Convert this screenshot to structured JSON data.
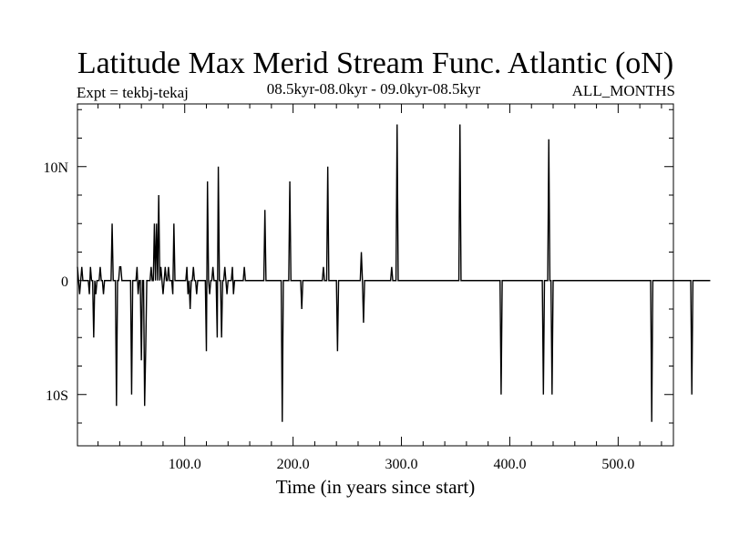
{
  "chart_data": {
    "type": "line",
    "title": "Latitude Max Merid Stream Func. Atlantic (oN)",
    "subtitle_left": "Expt = tekbj-tekaj",
    "subtitle_center": "08.5kyr-08.0kyr - 09.0kyr-08.5kyr",
    "subtitle_right": "ALL_MONTHS",
    "xlabel": "Time (in years since start)",
    "ylabel": "",
    "xlim": [
      1,
      551
    ],
    "ylim": [
      -14.5,
      15.5
    ],
    "x_ticks": [
      {
        "value": 100,
        "label": "100.0"
      },
      {
        "value": 200,
        "label": "200.0"
      },
      {
        "value": 300,
        "label": "300.0"
      },
      {
        "value": 400,
        "label": "400.0"
      },
      {
        "value": 500,
        "label": "500.0"
      }
    ],
    "y_ticks": [
      {
        "value": 10,
        "label": "10N"
      },
      {
        "value": 0,
        "label": "0"
      },
      {
        "value": -10,
        "label": "10S"
      }
    ],
    "series": [
      {
        "name": "Latitude Max Merid Stream Func. Atlantic",
        "x_start": 1,
        "x_step": 1,
        "values": [
          1.2,
          0,
          -1.2,
          0,
          1.2,
          0,
          0,
          0,
          0,
          0,
          0,
          -1.2,
          1.2,
          0,
          0,
          -5,
          0,
          -1.2,
          0,
          0,
          0,
          1.2,
          0,
          0,
          -1.2,
          0,
          0,
          0,
          0,
          0,
          0,
          0,
          5,
          0,
          0,
          0,
          -11,
          0,
          0,
          1.2,
          1.2,
          0,
          0,
          0,
          0,
          0,
          0,
          0,
          0,
          0,
          -10,
          0,
          0,
          0,
          0,
          1.2,
          -1.2,
          0,
          0,
          -7,
          0,
          0,
          -11,
          -6,
          0,
          0,
          0,
          0,
          1.2,
          0,
          0,
          5,
          0,
          5,
          0,
          7.5,
          0,
          1.2,
          0,
          -1.2,
          0,
          1.2,
          0,
          0,
          1.2,
          0,
          0,
          0,
          -1.2,
          5,
          0,
          0,
          0,
          0,
          0,
          0,
          0,
          0,
          0,
          0,
          0,
          1.2,
          -1.2,
          0,
          -2.5,
          0,
          0,
          1.2,
          0,
          0,
          -1.2,
          0,
          0,
          0,
          0,
          0,
          0,
          0,
          0,
          -6.2,
          8.7,
          0,
          -1.2,
          0,
          0,
          1.2,
          0,
          0,
          0,
          -5,
          10,
          0,
          0,
          -5,
          0,
          0,
          1.2,
          0,
          -1.2,
          0,
          0,
          0,
          0,
          1.2,
          -1.2,
          0,
          0,
          0,
          0,
          0,
          0,
          0,
          0,
          0,
          1.2,
          0,
          0,
          0,
          0,
          0,
          0,
          0,
          0,
          0,
          0,
          0,
          0,
          0,
          0,
          0,
          0,
          0,
          0,
          6.2,
          0,
          0,
          0,
          0,
          0,
          0,
          0,
          0,
          0,
          0,
          0,
          0,
          0,
          0,
          0,
          -12.4,
          0,
          0,
          0,
          0,
          0,
          0,
          8.7,
          0,
          0,
          0,
          0,
          0,
          0,
          0,
          0,
          0,
          0,
          -2.5,
          0,
          0,
          0,
          0,
          0,
          0,
          0,
          0,
          0,
          0,
          0,
          0,
          0,
          0,
          0,
          0,
          0,
          0,
          0,
          1.2,
          0,
          0,
          0,
          10,
          0,
          0,
          0,
          0,
          0,
          0,
          0,
          0,
          -6.2,
          0,
          0,
          0,
          0,
          0,
          0,
          0,
          0,
          0,
          0,
          0,
          0,
          0,
          0,
          0,
          0,
          0,
          0,
          0,
          0,
          0,
          2.5,
          0,
          -3.7,
          0,
          0,
          0,
          0,
          0,
          0,
          0,
          0,
          0,
          0,
          0,
          0,
          0,
          0,
          0,
          0,
          0,
          0,
          0,
          0,
          0,
          0,
          0,
          0,
          0,
          1.2,
          0,
          0,
          0,
          0,
          13.7,
          0,
          0,
          0,
          0,
          0,
          0,
          0,
          0,
          0,
          0,
          0,
          0,
          0,
          0,
          0,
          0,
          0,
          0,
          0,
          0,
          0,
          0,
          0,
          0,
          0,
          0,
          0,
          0,
          0,
          0,
          0,
          0,
          0,
          0,
          0,
          0,
          0,
          0,
          0,
          0,
          0,
          0,
          0,
          0,
          0,
          0,
          0,
          0,
          0,
          0,
          0,
          0,
          0,
          0,
          0,
          0,
          0,
          13.7,
          0,
          0,
          0,
          0,
          0,
          0,
          0,
          0,
          0,
          0,
          0,
          0,
          0,
          0,
          0,
          0,
          0,
          0,
          0,
          0,
          0,
          0,
          0,
          0,
          0,
          0,
          0,
          0,
          0,
          0,
          0,
          0,
          0,
          0,
          0,
          0,
          0,
          -10,
          0,
          0,
          0,
          0,
          0,
          0,
          0,
          0,
          0,
          0,
          0,
          0,
          0,
          0,
          0,
          0,
          0,
          0,
          0,
          0,
          0,
          0,
          0,
          0,
          0,
          0,
          0,
          0,
          0,
          0,
          0,
          0,
          0,
          0,
          0,
          0,
          0,
          0,
          -10,
          0,
          0,
          0,
          0,
          12.4,
          0,
          0,
          -10,
          0,
          0,
          0,
          0,
          0,
          0,
          0,
          0,
          0,
          0,
          0,
          0,
          0,
          0,
          0,
          0,
          0,
          0,
          0,
          0,
          0,
          0,
          0,
          0,
          0,
          0,
          0,
          0,
          0,
          0,
          0,
          0,
          0,
          0,
          0,
          0,
          0,
          0,
          0,
          0,
          0,
          0,
          0,
          0,
          0,
          0,
          0,
          0,
          0,
          0,
          0,
          0,
          0,
          0,
          0,
          0,
          0,
          0,
          0,
          0,
          0,
          0,
          0,
          0,
          0,
          0,
          0,
          0,
          0,
          0,
          0,
          0,
          0,
          0,
          0,
          0,
          0,
          0,
          0,
          0,
          0,
          0,
          0,
          0,
          0,
          0,
          0,
          0,
          0,
          0,
          0,
          -12.4,
          0,
          0,
          0,
          0,
          0,
          0,
          0,
          0,
          0,
          0,
          0,
          0,
          0,
          0,
          0,
          0,
          0,
          0,
          0,
          0,
          0,
          0,
          0,
          0,
          0,
          0,
          0,
          0,
          0,
          0,
          0,
          0,
          0,
          0,
          0,
          0,
          -10,
          0,
          0,
          0,
          0,
          0,
          0,
          0,
          0,
          0,
          0,
          0,
          0,
          0,
          0,
          0,
          0,
          0
        ]
      }
    ]
  }
}
